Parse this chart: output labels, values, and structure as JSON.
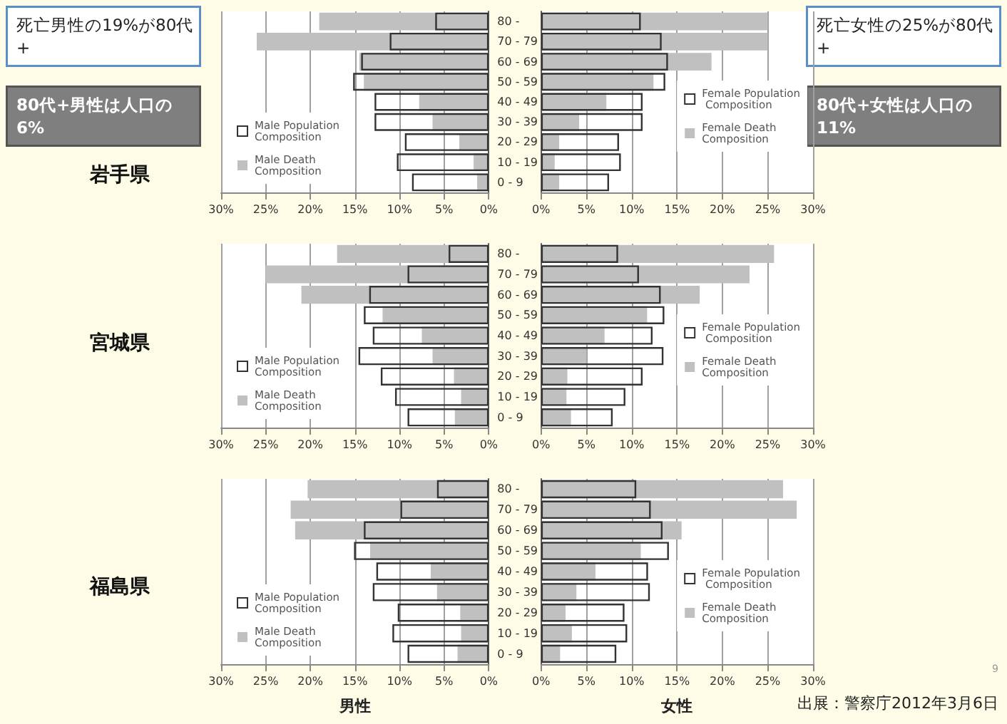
{
  "chart_data": [
    {
      "type": "bar",
      "orientation": "horizontal",
      "title": "岩手県",
      "categories": [
        "80 -",
        "70 - 79",
        "60 - 69",
        "50 - 59",
        "40 - 49",
        "30 - 39",
        "20 - 29",
        "10 - 19",
        "0 - 9"
      ],
      "series": [
        {
          "name": "Male Population Composition",
          "color": "#333333",
          "values": [
            6,
            11.1,
            14.3,
            15.2,
            12.8,
            12.8,
            9.4,
            10.3,
            8.6
          ]
        },
        {
          "name": "Male Death Composition",
          "color": "#c0c0c0",
          "values": [
            19,
            26,
            14.5,
            14,
            7.8,
            6.3,
            3.3,
            1.7,
            1.3
          ]
        }
      ],
      "xlim": [
        30,
        0
      ],
      "xticks": [
        {
          "value": 30,
          "label": "30%"
        },
        {
          "value": 25,
          "label": "25%"
        },
        {
          "value": 20,
          "label": "20%"
        },
        {
          "value": 15,
          "label": "15%"
        },
        {
          "value": 10,
          "label": "10%"
        },
        {
          "value": 5,
          "label": "5%"
        },
        {
          "value": 0,
          "label": "0%"
        }
      ],
      "grid": "x",
      "legend": "left",
      "annotations": [
        "死亡男性の19%が80代+",
        "80代+男性は人口の6%"
      ]
    },
    {
      "type": "bar",
      "orientation": "horizontal",
      "categories": [
        "80 -",
        "70 - 79",
        "60 - 69",
        "50 - 59",
        "40 - 49",
        "30 - 39",
        "20 - 29",
        "10 - 19",
        "0 - 9"
      ],
      "series": [
        {
          "name": "Female Population Composition",
          "color": "#333333",
          "values": [
            11,
            13.3,
            14,
            13.7,
            11.2,
            11.2,
            8.6,
            8.8,
            7.5
          ]
        },
        {
          "name": "Female Death Composition",
          "color": "#c0c0c0",
          "values": [
            25,
            25,
            18.8,
            12.4,
            7.2,
            4.2,
            2,
            1.5,
            2
          ]
        }
      ],
      "xlim": [
        0,
        30
      ],
      "xticks": [
        {
          "value": 0,
          "label": "0%"
        },
        {
          "value": 5,
          "label": "5%"
        },
        {
          "value": 10,
          "label": "10%"
        },
        {
          "value": 15,
          "label": "15%"
        },
        {
          "value": 20,
          "label": "20%"
        },
        {
          "value": 25,
          "label": "25%"
        },
        {
          "value": 30,
          "label": "30%"
        }
      ],
      "grid": "x",
      "legend": "right",
      "tick_labels": "x",
      "annotations": [
        "死亡女性の25%が80代+",
        "80代+女性は人口の11%"
      ]
    },
    {
      "type": "bar",
      "orientation": "horizontal",
      "title": "宮城県",
      "categories": [
        "80 -",
        "70 - 79",
        "60 - 69",
        "50 - 59",
        "40 - 49",
        "30 - 39",
        "20 - 29",
        "10 - 19",
        "0 - 9"
      ],
      "series": [
        {
          "name": "Male Population Composition",
          "color": "#333333",
          "values": [
            4.5,
            9.1,
            13.4,
            14,
            13,
            14.6,
            12.1,
            10.5,
            9.1
          ]
        },
        {
          "name": "Male Death Composition",
          "color": "#c0c0c0",
          "values": [
            17,
            25,
            21,
            11.9,
            7.5,
            6.3,
            3.9,
            3.1,
            3.8
          ]
        }
      ],
      "xlim": [
        30,
        0
      ],
      "xticks": [
        {
          "value": 30,
          "label": "30%"
        },
        {
          "value": 25,
          "label": "25%"
        },
        {
          "value": 20,
          "label": "20%"
        },
        {
          "value": 15,
          "label": "15%"
        },
        {
          "value": 10,
          "label": "10%"
        },
        {
          "value": 5,
          "label": "5%"
        },
        {
          "value": 0,
          "label": "0%"
        }
      ],
      "grid": "x",
      "legend": "left"
    },
    {
      "type": "bar",
      "orientation": "horizontal",
      "categories": [
        "80 -",
        "70 - 79",
        "60 - 69",
        "50 - 59",
        "40 - 49",
        "30 - 39",
        "20 - 29",
        "10 - 19",
        "0 - 9"
      ],
      "series": [
        {
          "name": "Female Population Composition",
          "color": "#333333",
          "values": [
            8.5,
            10.8,
            13.2,
            13.6,
            12.3,
            13.5,
            11.2,
            9.3,
            7.9
          ]
        },
        {
          "name": "Female Death Composition",
          "color": "#c0c0c0",
          "values": [
            25.7,
            23,
            17.5,
            11.7,
            7,
            5,
            2.9,
            2.8,
            3.3
          ]
        }
      ],
      "xlim": [
        0,
        30
      ],
      "xticks": [
        {
          "value": 0,
          "label": "0%"
        },
        {
          "value": 5,
          "label": "5%"
        },
        {
          "value": 10,
          "label": "10%"
        },
        {
          "value": 15,
          "label": "15%"
        },
        {
          "value": 20,
          "label": "20%"
        },
        {
          "value": 25,
          "label": "25%"
        },
        {
          "value": 30,
          "label": "30%"
        }
      ],
      "grid": "x",
      "legend": "right",
      "tick_labels": "x"
    },
    {
      "type": "bar",
      "orientation": "horizontal",
      "title": "福島県",
      "xlabel": "男性",
      "categories": [
        "80 -",
        "70 - 79",
        "60 - 69",
        "50 - 59",
        "40 - 49",
        "30 - 39",
        "20 - 29",
        "10 - 19",
        "0 - 9"
      ],
      "series": [
        {
          "name": "Male Population Composition",
          "color": "#333333",
          "values": [
            5.8,
            9.9,
            14,
            15.1,
            12.6,
            13,
            10.2,
            10.8,
            9.1
          ]
        },
        {
          "name": "Male Death Composition",
          "color": "#c0c0c0",
          "values": [
            20.3,
            22.2,
            21.7,
            13.3,
            6.5,
            5.8,
            3.2,
            3.1,
            3.5
          ]
        }
      ],
      "xlim": [
        30,
        0
      ],
      "xticks": [
        {
          "value": 30,
          "label": "30%"
        },
        {
          "value": 25,
          "label": "25%"
        },
        {
          "value": 20,
          "label": "20%"
        },
        {
          "value": 15,
          "label": "15%"
        },
        {
          "value": 10,
          "label": "10%"
        },
        {
          "value": 5,
          "label": "5%"
        },
        {
          "value": 0,
          "label": "0%"
        }
      ],
      "grid": "x",
      "legend": "left"
    },
    {
      "type": "bar",
      "orientation": "horizontal",
      "xlabel": "女性",
      "categories": [
        "80 -",
        "70 - 79",
        "60 - 69",
        "50 - 59",
        "40 - 49",
        "30 - 39",
        "20 - 29",
        "10 - 19",
        "0 - 9"
      ],
      "series": [
        {
          "name": "Female Population Composition",
          "color": "#333333",
          "values": [
            10.5,
            12.1,
            13.4,
            14.1,
            11.8,
            12,
            9.2,
            9.5,
            8.3
          ]
        },
        {
          "name": "Female Death Composition",
          "color": "#c0c0c0",
          "values": [
            26.7,
            28.2,
            15.5,
            11,
            6,
            3.9,
            2.7,
            3.4,
            2.1
          ]
        }
      ],
      "xlim": [
        0,
        30
      ],
      "xticks": [
        {
          "value": 0,
          "label": "0%"
        },
        {
          "value": 5,
          "label": "5%"
        },
        {
          "value": 10,
          "label": "10%"
        },
        {
          "value": 15,
          "label": "15%"
        },
        {
          "value": 20,
          "label": "20%"
        },
        {
          "value": 25,
          "label": "25%"
        },
        {
          "value": 30,
          "label": "30%"
        }
      ],
      "grid": "x",
      "legend": "right",
      "tick_labels": "x",
      "annotations": [
        "9",
        "出展：警察庁2012年3月6日"
      ]
    }
  ]
}
